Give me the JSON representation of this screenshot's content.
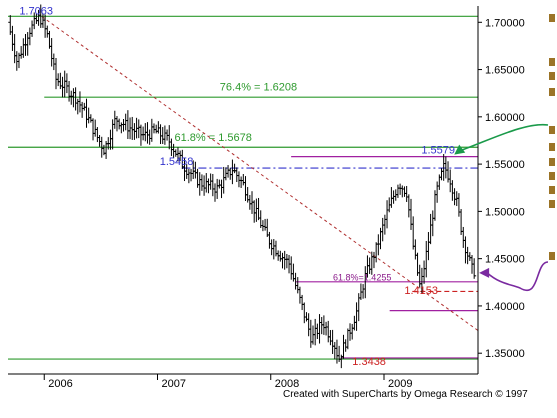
{
  "chart_data": {
    "type": "ohlc",
    "title": "",
    "xlabel": "",
    "ylabel": "",
    "ylim": [
      1.328,
      1.713
    ],
    "x_ticks": [
      {
        "label": "2006",
        "t": 0.5
      },
      {
        "label": "2007",
        "t": 1.5
      },
      {
        "label": "2008",
        "t": 2.5
      },
      {
        "label": "2009",
        "t": 3.5
      }
    ],
    "y_ticks": [
      1.7,
      1.65,
      1.6,
      1.55,
      1.5,
      1.45,
      1.4,
      1.35
    ],
    "y_tick_labels": [
      "1.70000",
      "1.65000",
      "1.60000",
      "1.55000",
      "1.50000",
      "1.45000",
      "1.40000",
      "1.35000"
    ],
    "x_range": [
      -0.32,
      3.83
    ],
    "price_path": [
      [
        -0.3,
        1.7
      ],
      [
        -0.22,
        1.658
      ],
      [
        -0.12,
        1.69
      ],
      [
        -0.02,
        1.706
      ],
      [
        0.05,
        1.685
      ],
      [
        0.12,
        1.64
      ],
      [
        0.2,
        1.632
      ],
      [
        0.3,
        1.62
      ],
      [
        0.4,
        1.6
      ],
      [
        0.48,
        1.58
      ],
      [
        0.55,
        1.565
      ],
      [
        0.65,
        1.598
      ],
      [
        0.78,
        1.588
      ],
      [
        0.9,
        1.58
      ],
      [
        1.0,
        1.585
      ],
      [
        1.12,
        1.575
      ],
      [
        1.25,
        1.548
      ],
      [
        1.4,
        1.53
      ],
      [
        1.55,
        1.524
      ],
      [
        1.68,
        1.545
      ],
      [
        1.78,
        1.528
      ],
      [
        1.9,
        1.495
      ],
      [
        2.0,
        1.47
      ],
      [
        2.1,
        1.455
      ],
      [
        2.18,
        1.445
      ],
      [
        2.28,
        1.405
      ],
      [
        2.38,
        1.365
      ],
      [
        2.48,
        1.383
      ],
      [
        2.58,
        1.36
      ],
      [
        2.62,
        1.344
      ],
      [
        2.7,
        1.368
      ],
      [
        2.78,
        1.395
      ],
      [
        2.85,
        1.43
      ],
      [
        2.95,
        1.46
      ],
      [
        3.05,
        1.5
      ],
      [
        3.15,
        1.53
      ],
      [
        3.22,
        1.52
      ],
      [
        3.28,
        1.46
      ],
      [
        3.34,
        1.418
      ],
      [
        3.4,
        1.46
      ],
      [
        3.48,
        1.52
      ],
      [
        3.55,
        1.548
      ],
      [
        3.6,
        1.535
      ],
      [
        3.66,
        1.51
      ],
      [
        3.72,
        1.47
      ],
      [
        3.8,
        1.437
      ]
    ],
    "horizontal_levels": [
      {
        "value": 1.7063,
        "color": "#2e9a2e",
        "style": "solid",
        "x_from": -0.32
      },
      {
        "value": 1.6208,
        "color": "#2e9a2e",
        "style": "solid",
        "x_from": 0.0
      },
      {
        "value": 1.5678,
        "color": "#2e9a2e",
        "style": "solid",
        "x_from": -0.32
      },
      {
        "value": 1.3438,
        "color": "#2e9a2e",
        "style": "solid",
        "x_from": -0.32
      },
      {
        "value": 1.5579,
        "color": "#a020a0",
        "style": "solid",
        "x_from": 2.18
      },
      {
        "value": 1.5458,
        "color": "#3333cc",
        "style": "dashdot",
        "x_from": 1.22
      },
      {
        "value": 1.4255,
        "color": "#a020a0",
        "style": "solid",
        "x_from": 2.22
      },
      {
        "value": 1.4153,
        "color": "#cc2222",
        "style": "dashed",
        "x_from": 3.25
      },
      {
        "value": 1.395,
        "color": "#a020a0",
        "style": "solid",
        "x_from": 3.05
      },
      {
        "value": 1.345,
        "color": "#a020a0",
        "style": "solid",
        "x_from": 2.62
      }
    ],
    "trendline": {
      "from": [
        -0.02,
        1.706
      ],
      "to": [
        3.83,
        1.374
      ],
      "color": "#b03030",
      "style": "dotted"
    },
    "annotations": [
      {
        "text": "1.7063",
        "x": -0.22,
        "y": 1.7085,
        "color": "#3333cc"
      },
      {
        "text": "76.4% = 1.6208",
        "x": 1.55,
        "y": 1.628,
        "color": "#2e9a2e"
      },
      {
        "text": "61.8% = 1.5678",
        "x": 1.15,
        "y": 1.5745,
        "color": "#2e9a2e"
      },
      {
        "text": "1.5458",
        "x": 1.02,
        "y": 1.549,
        "color": "#3333cc"
      },
      {
        "text": "1.5579",
        "x": 3.33,
        "y": 1.561,
        "color": "#3333cc"
      },
      {
        "text": "61.8%=1.4255",
        "x": 2.55,
        "y": 1.427,
        "color": "#8a1a8a"
      },
      {
        "text": "1.4153",
        "x": 3.18,
        "y": 1.4125,
        "color": "#cc2222"
      },
      {
        "text": "1.3438",
        "x": 2.72,
        "y": 1.3375,
        "color": "#cc2222"
      }
    ],
    "arrows": [
      {
        "color": "#1a9a4a",
        "target": [
          3.62,
          1.56
        ]
      },
      {
        "color": "#7a2aa0",
        "target": [
          3.84,
          1.435
        ]
      }
    ],
    "grid": false,
    "legend": "none"
  },
  "credit": "Created with SuperCharts by Omega Research © 1997"
}
